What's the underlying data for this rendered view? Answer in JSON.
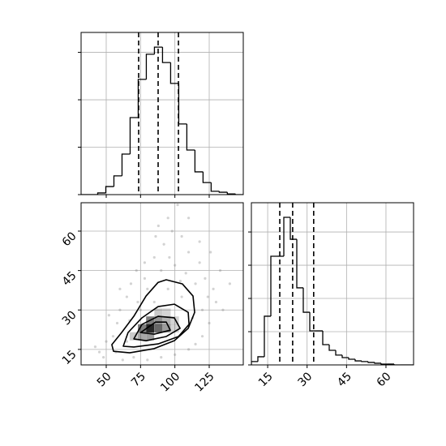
{
  "chart_data": [
    {
      "type": "histogram",
      "color": "#000000",
      "grid": true,
      "show_xtick_labels": false,
      "show_ytick_labels": false,
      "bins": [
        32,
        37.9,
        43.8,
        49.7,
        55.6,
        61.5,
        67.4,
        73.3,
        79.2,
        85.1,
        91,
        96.9,
        102.8,
        108.7,
        114.6,
        120.5,
        126.4,
        132.3,
        138.2,
        144.1,
        150
      ],
      "values": [
        0,
        0,
        7,
        34,
        79,
        171,
        325,
        486,
        592,
        622,
        557,
        469,
        298,
        188,
        96,
        51,
        14,
        10,
        3,
        0
      ],
      "quantiles": [
        73.6,
        87.8,
        102.6
      ],
      "xlim": [
        31.7,
        149.8
      ],
      "xticks": [
        50,
        75,
        100,
        125
      ],
      "ylim": [
        0,
        684
      ],
      "yticks": [
        0,
        200,
        400,
        600
      ]
    },
    {
      "type": "scatter_density",
      "grid": true,
      "point_color": "#808080",
      "contour_color": "#000000",
      "x": [
        45,
        50,
        48,
        58,
        60,
        65,
        68,
        72,
        78,
        85,
        92,
        98,
        105,
        110,
        118,
        122,
        128,
        130,
        135,
        125,
        120,
        115,
        110,
        100,
        90,
        80,
        70,
        62,
        55,
        65,
        75,
        80,
        90,
        100,
        108,
        115,
        120,
        105,
        95,
        85,
        140,
        133,
        95,
        88,
        110,
        102,
        60,
        52,
        42,
        57,
        126,
        118,
        73,
        67,
        113,
        124,
        86,
        78,
        96,
        104
      ],
      "y": [
        14,
        18,
        12,
        25,
        30,
        35,
        40,
        45,
        48,
        50,
        55,
        60,
        58,
        52,
        48,
        42,
        38,
        33,
        30,
        25,
        20,
        17,
        15,
        13,
        12,
        11,
        12,
        11,
        20,
        18,
        30,
        38,
        45,
        47,
        44,
        40,
        30,
        35,
        38,
        33,
        40,
        45,
        65,
        62,
        65,
        70,
        38,
        28,
        16,
        14,
        52,
        56,
        33,
        26,
        27,
        35,
        58,
        42,
        50,
        41
      ],
      "density": {
        "cell_size": [
          5.9,
          3.1
        ],
        "x": [
          82,
          88,
          76,
          82,
          88,
          94,
          76,
          82,
          94,
          70,
          100,
          88,
          94,
          100
        ],
        "y": [
          23,
          23,
          23,
          26,
          26,
          23,
          20,
          20,
          26,
          20,
          26,
          29,
          29,
          23
        ],
        "level": [
          1.0,
          0.7,
          0.6,
          0.6,
          0.5,
          0.45,
          0.4,
          0.45,
          0.35,
          0.25,
          0.2,
          0.25,
          0.2,
          0.2
        ]
      },
      "contours": [
        {
          "x": [
            55.3,
            54.1,
            61.2,
            70.1,
            79.0,
            87.8,
            93.7,
            105.5,
            113.2,
            114.4,
            109.7,
            99.6,
            84.9,
            67.1
          ],
          "y": [
            14.3,
            16.8,
            21.4,
            27.6,
            35.3,
            40.5,
            41.5,
            39.9,
            35.3,
            29.1,
            23.0,
            18.3,
            15.3,
            13.7
          ]
        },
        {
          "x": [
            62.4,
            65.9,
            76.0,
            87.8,
            99.6,
            109.7,
            110.3,
            102.6,
            87.8,
            70.1
          ],
          "y": [
            16.2,
            21.4,
            27.0,
            31.3,
            32.2,
            29.1,
            24.5,
            19.9,
            17.1,
            15.9
          ]
        },
        {
          "x": [
            70.1,
            76.0,
            87.8,
            99.6,
            103.8,
            93.7,
            79.0
          ],
          "y": [
            19.0,
            24.5,
            27.6,
            27.0,
            23.0,
            19.9,
            18.3
          ]
        },
        {
          "x": [
            75.0,
            85.9,
            93.7,
            96.7,
            84.9
          ],
          "y": [
            21.4,
            25.4,
            25.4,
            22.3,
            20.8
          ]
        }
      ],
      "xlim": [
        31.7,
        149.8
      ],
      "xticks": [
        50,
        75,
        100,
        125
      ],
      "ylim": [
        9.1,
        70.8
      ],
      "yticks": [
        15,
        30,
        45,
        60
      ]
    },
    {
      "type": "histogram",
      "color": "#000000",
      "grid": true,
      "show_xtick_labels": true,
      "show_ytick_labels": false,
      "bins": [
        8.8,
        11.268,
        13.736,
        16.204,
        18.672,
        21.14,
        23.608,
        26.076,
        28.544,
        31.012,
        33.48,
        35.948,
        38.416,
        40.884,
        43.352,
        45.82,
        48.288,
        50.756,
        53.224,
        55.692,
        58.16,
        60.628,
        63.096,
        65.564,
        68.032,
        70.5
      ],
      "values": [
        20,
        49,
        293,
        654,
        654,
        888,
        756,
        464,
        317,
        205,
        205,
        122,
        88,
        59,
        44,
        34,
        24,
        20,
        15,
        10,
        5,
        5,
        0,
        0,
        0
      ],
      "quantiles": [
        19.6,
        24.5,
        32.5
      ],
      "xlim": [
        8.8,
        70.5
      ],
      "xticks": [
        15,
        30,
        45,
        60
      ],
      "ylim": [
        0,
        976
      ],
      "yticks": [
        0,
        200,
        400,
        600,
        800
      ]
    }
  ]
}
